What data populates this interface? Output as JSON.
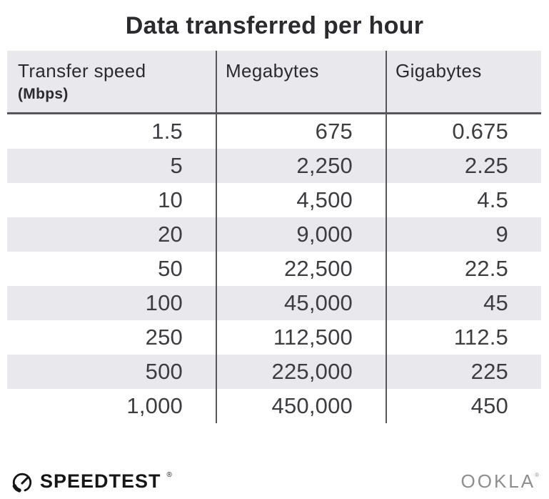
{
  "title": "Data transferred per hour",
  "chart_data": {
    "type": "table",
    "title": "Data transferred per hour",
    "columns": [
      "Transfer speed (Mbps)",
      "Megabytes",
      "Gigabytes"
    ],
    "rows": [
      [
        1.5,
        675,
        0.675
      ],
      [
        5,
        2250,
        2.25
      ],
      [
        10,
        4500,
        4.5
      ],
      [
        20,
        9000,
        9
      ],
      [
        50,
        22500,
        22.5
      ],
      [
        100,
        45000,
        45
      ],
      [
        250,
        112500,
        112.5
      ],
      [
        500,
        225000,
        225
      ],
      [
        1000,
        450000,
        450
      ]
    ]
  },
  "table": {
    "header": {
      "col1_label": "Transfer speed",
      "col1_sublabel": "(Mbps)",
      "col2_label": "Megabytes",
      "col3_label": "Gigabytes"
    },
    "rows": [
      [
        "1.5",
        "675",
        "0.675"
      ],
      [
        "5",
        "2,250",
        "2.25"
      ],
      [
        "10",
        "4,500",
        "4.5"
      ],
      [
        "20",
        "9,000",
        "9"
      ],
      [
        "50",
        "22,500",
        "22.5"
      ],
      [
        "100",
        "45,000",
        "45"
      ],
      [
        "250",
        "112,500",
        "112.5"
      ],
      [
        "500",
        "225,000",
        "225"
      ],
      [
        "1,000",
        "450,000",
        "450"
      ]
    ]
  },
  "footer": {
    "speedtest_label": "SPEEDTEST",
    "speedtest_trademark": "®",
    "ookla_label": "OOKLA",
    "ookla_trademark": "®"
  },
  "colors": {
    "header_bg": "#e9e8ed",
    "stripe_bg": "#e9e8ed",
    "line_dark": "#57565a",
    "text_dark": "#2b2a2e",
    "number_text": "#3d3c41",
    "brand_black": "#161616",
    "ookla_gray": "#8e8d91"
  }
}
